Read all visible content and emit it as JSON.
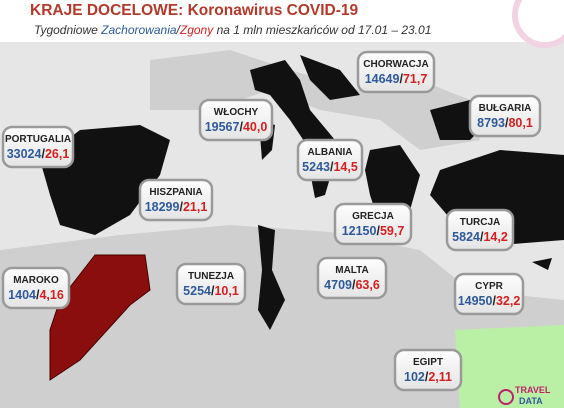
{
  "header": {
    "title": "KRAJE DOCELOWE: Koronawirus COVID-19",
    "subtitle": {
      "prefix": "Tygodniowe ",
      "cases_word": "Zachorowania",
      "separator": "/",
      "deaths_word": "Zgony",
      "suffix": " na 1 mln mieszkańców od 17.01 – 23.01"
    }
  },
  "countries": [
    {
      "name": "PORTUGALIA",
      "cases": "33024",
      "deaths": "26,1"
    },
    {
      "name": "WŁOCHY",
      "cases": "19567",
      "deaths": "40,0"
    },
    {
      "name": "CHORWACJA",
      "cases": "14649",
      "deaths": "71,7"
    },
    {
      "name": "BUŁGARIA",
      "cases": "8793",
      "deaths": "80,1"
    },
    {
      "name": "ALBANIA",
      "cases": "5243",
      "deaths": "14,5"
    },
    {
      "name": "HISZPANIA",
      "cases": "18299",
      "deaths": "21,1"
    },
    {
      "name": "GRECJA",
      "cases": "12150",
      "deaths": "59,7"
    },
    {
      "name": "TURCJA",
      "cases": "5824",
      "deaths": "14,2"
    },
    {
      "name": "MAROKO",
      "cases": "1404",
      "deaths": "4,16"
    },
    {
      "name": "TUNEZJA",
      "cases": "5254",
      "deaths": "10,1"
    },
    {
      "name": "MALTA",
      "cases": "4709",
      "deaths": "63,6"
    },
    {
      "name": "CYPR",
      "cases": "14950",
      "deaths": "32,2"
    },
    {
      "name": "EGIPT",
      "cases": "102",
      "deaths": "2,11"
    }
  ],
  "separator": "/",
  "logo": {
    "line1": "TRAVEL",
    "line2": "DATA"
  }
}
